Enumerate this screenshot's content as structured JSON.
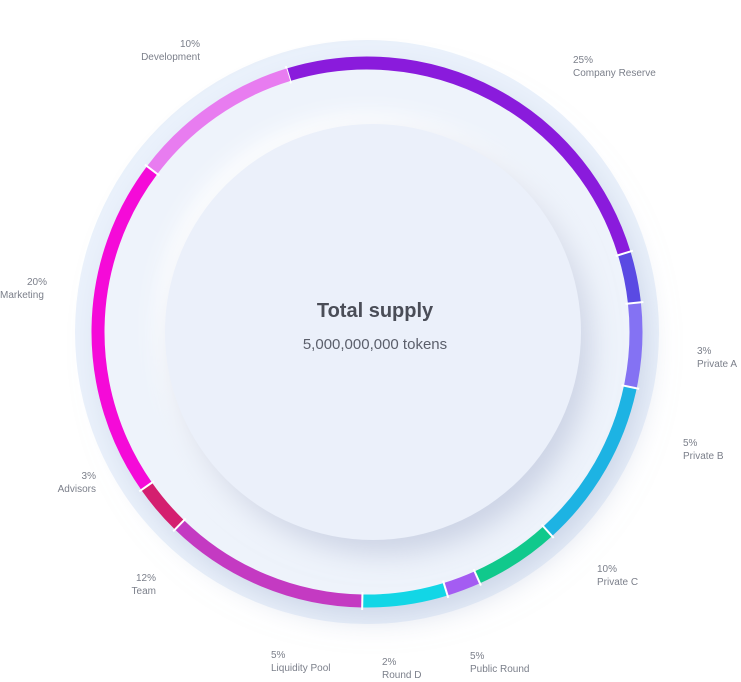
{
  "chart_data": {
    "type": "pie",
    "variant": "donut",
    "title": "Total supply",
    "subtitle": "5,000,000,000 tokens",
    "unit": "%",
    "slices": [
      {
        "label": "Company Reserve",
        "value": 25,
        "display": "25%",
        "color": "#8a1bdc"
      },
      {
        "label": "Private A",
        "value": 3,
        "display": "3%",
        "color": "#5a4ae3"
      },
      {
        "label": "Private B",
        "value": 5,
        "display": "5%",
        "color": "#8472f3"
      },
      {
        "label": "Private C",
        "value": 10,
        "display": "10%",
        "color": "#1db3e3"
      },
      {
        "label": "Public Round",
        "value": 5,
        "display": "5%",
        "color": "#10c98c"
      },
      {
        "label": "Round D",
        "value": 2,
        "display": "2%",
        "color": "#a45cf2"
      },
      {
        "label": "Liquidity Pool",
        "value": 5,
        "display": "5%",
        "color": "#12d6e6"
      },
      {
        "label": "Team",
        "value": 12,
        "display": "12%",
        "color": "#c43ac2"
      },
      {
        "label": "Advisors",
        "value": 3,
        "display": "3%",
        "color": "#d41f6f"
      },
      {
        "label": "Marketing",
        "value": 20,
        "display": "20%",
        "color": "#f50ad8"
      },
      {
        "label": "Development",
        "value": 10,
        "display": "10%",
        "color": "#e87cf0"
      }
    ]
  }
}
